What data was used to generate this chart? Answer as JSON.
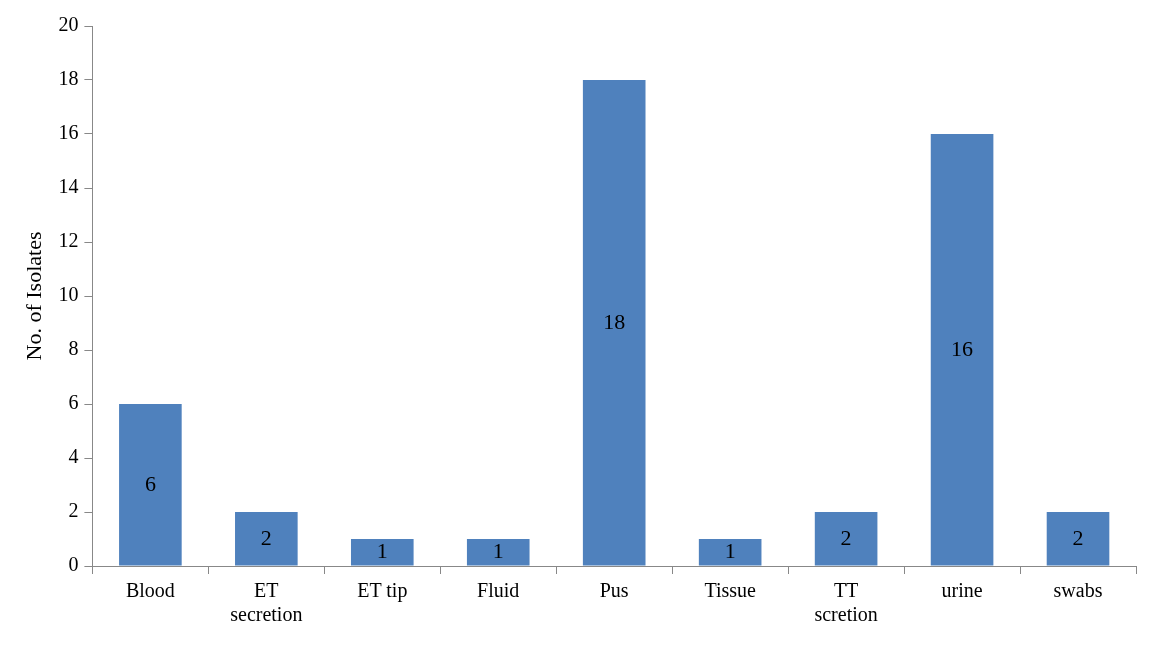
{
  "chart_data": {
    "type": "bar",
    "ylabel": "No. of Isolates",
    "categories": [
      "Blood",
      "ET secretion",
      "ET tip",
      "Fluid",
      "Pus",
      "Tissue",
      "TT scretion",
      "urine",
      "swabs"
    ],
    "values": [
      6,
      2,
      1,
      1,
      18,
      1,
      2,
      16,
      2
    ],
    "color": "#4f81bd",
    "ylim": [
      0,
      20
    ],
    "yticks": [
      0,
      2,
      4,
      6,
      8,
      10,
      12,
      14,
      16,
      18,
      20
    ],
    "grid": false,
    "legend": false,
    "data_labels": true
  }
}
